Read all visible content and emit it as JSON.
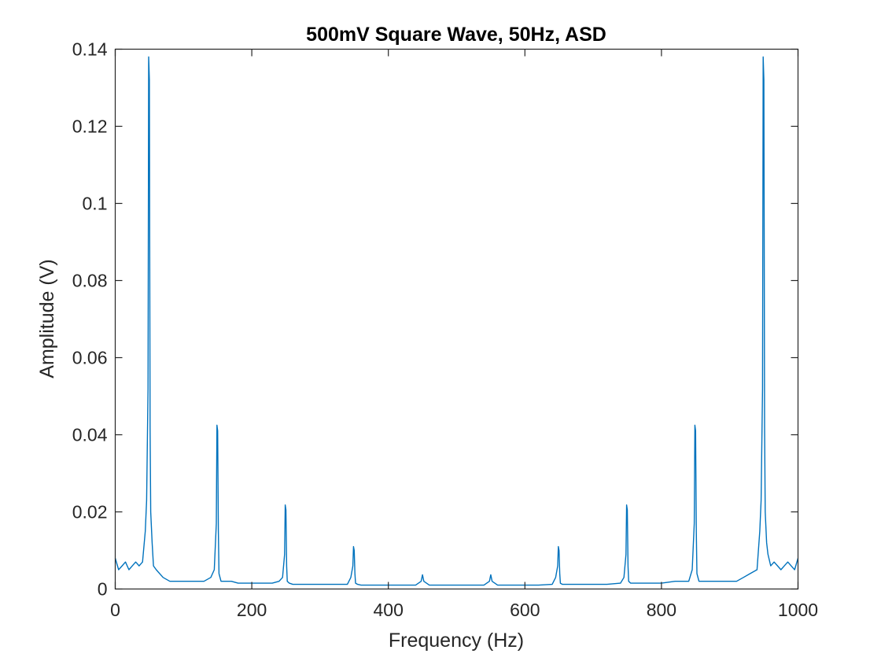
{
  "chart_data": {
    "type": "line",
    "title": "500mV Square Wave, 50Hz, ASD",
    "xlabel": "Frequency (Hz)",
    "ylabel": "Amplitude (V)",
    "xlim": [
      0,
      1000
    ],
    "ylim": [
      0,
      0.14
    ],
    "grid": false,
    "legend": "none",
    "line_color": "#0072BD",
    "x_ticks": [
      0,
      200,
      400,
      600,
      800,
      1000
    ],
    "x_tick_labels": [
      "0",
      "200",
      "400",
      "600",
      "800",
      "1000"
    ],
    "y_ticks": [
      0,
      0.02,
      0.04,
      0.06,
      0.08,
      0.1,
      0.12,
      0.14
    ],
    "y_tick_labels": [
      "0",
      "0.02",
      "0.04",
      "0.06",
      "0.08",
      "0.1",
      "0.12",
      "0.14"
    ],
    "series": [
      {
        "x": [
          0,
          5,
          10,
          15,
          20,
          25,
          30,
          35,
          40,
          44,
          46,
          48,
          49,
          50,
          51,
          52,
          54,
          56,
          60,
          70,
          80,
          90,
          100,
          110,
          120,
          130,
          140,
          145,
          148,
          149,
          150,
          151,
          152,
          155,
          160,
          170,
          180,
          190,
          200,
          210,
          220,
          230,
          240,
          245,
          248,
          249,
          250,
          251,
          252,
          255,
          260,
          280,
          300,
          320,
          340,
          345,
          348,
          349,
          350,
          351,
          352,
          355,
          360,
          380,
          400,
          420,
          440,
          448,
          450,
          452,
          460,
          480,
          500,
          520,
          540,
          548,
          550,
          552,
          560,
          580,
          600,
          620,
          640,
          645,
          648,
          649,
          650,
          651,
          652,
          655,
          660,
          680,
          700,
          720,
          740,
          745,
          748,
          749,
          750,
          751,
          752,
          755,
          760,
          780,
          800,
          820,
          840,
          845,
          848,
          849,
          850,
          851,
          852,
          855,
          860,
          880,
          900,
          910,
          920,
          930,
          940,
          944,
          946,
          948,
          949,
          950,
          951,
          952,
          954,
          956,
          960,
          965,
          970,
          975,
          980,
          985,
          990,
          995,
          1000
        ],
        "y": [
          0.008,
          0.005,
          0.006,
          0.007,
          0.005,
          0.006,
          0.007,
          0.006,
          0.007,
          0.015,
          0.023,
          0.052,
          0.138,
          0.132,
          0.042,
          0.02,
          0.012,
          0.006,
          0.005,
          0.003,
          0.002,
          0.002,
          0.002,
          0.002,
          0.002,
          0.002,
          0.003,
          0.005,
          0.017,
          0.0425,
          0.041,
          0.015,
          0.004,
          0.002,
          0.002,
          0.002,
          0.0015,
          0.0015,
          0.0015,
          0.0015,
          0.0015,
          0.0015,
          0.002,
          0.003,
          0.009,
          0.0218,
          0.0205,
          0.006,
          0.002,
          0.0015,
          0.0012,
          0.0012,
          0.0012,
          0.0012,
          0.0012,
          0.003,
          0.006,
          0.011,
          0.01,
          0.004,
          0.0015,
          0.0012,
          0.001,
          0.001,
          0.001,
          0.001,
          0.001,
          0.002,
          0.0037,
          0.002,
          0.001,
          0.001,
          0.001,
          0.001,
          0.001,
          0.002,
          0.0037,
          0.002,
          0.001,
          0.001,
          0.001,
          0.001,
          0.0012,
          0.003,
          0.006,
          0.011,
          0.01,
          0.004,
          0.0015,
          0.0012,
          0.0012,
          0.0012,
          0.0012,
          0.0012,
          0.0015,
          0.003,
          0.009,
          0.0218,
          0.0205,
          0.006,
          0.002,
          0.0015,
          0.0015,
          0.0015,
          0.0015,
          0.002,
          0.002,
          0.005,
          0.017,
          0.0425,
          0.041,
          0.015,
          0.004,
          0.002,
          0.002,
          0.002,
          0.002,
          0.002,
          0.003,
          0.004,
          0.005,
          0.015,
          0.023,
          0.052,
          0.138,
          0.132,
          0.042,
          0.02,
          0.012,
          0.009,
          0.006,
          0.007,
          0.006,
          0.005,
          0.006,
          0.007,
          0.006,
          0.005,
          0.008
        ]
      }
    ]
  }
}
